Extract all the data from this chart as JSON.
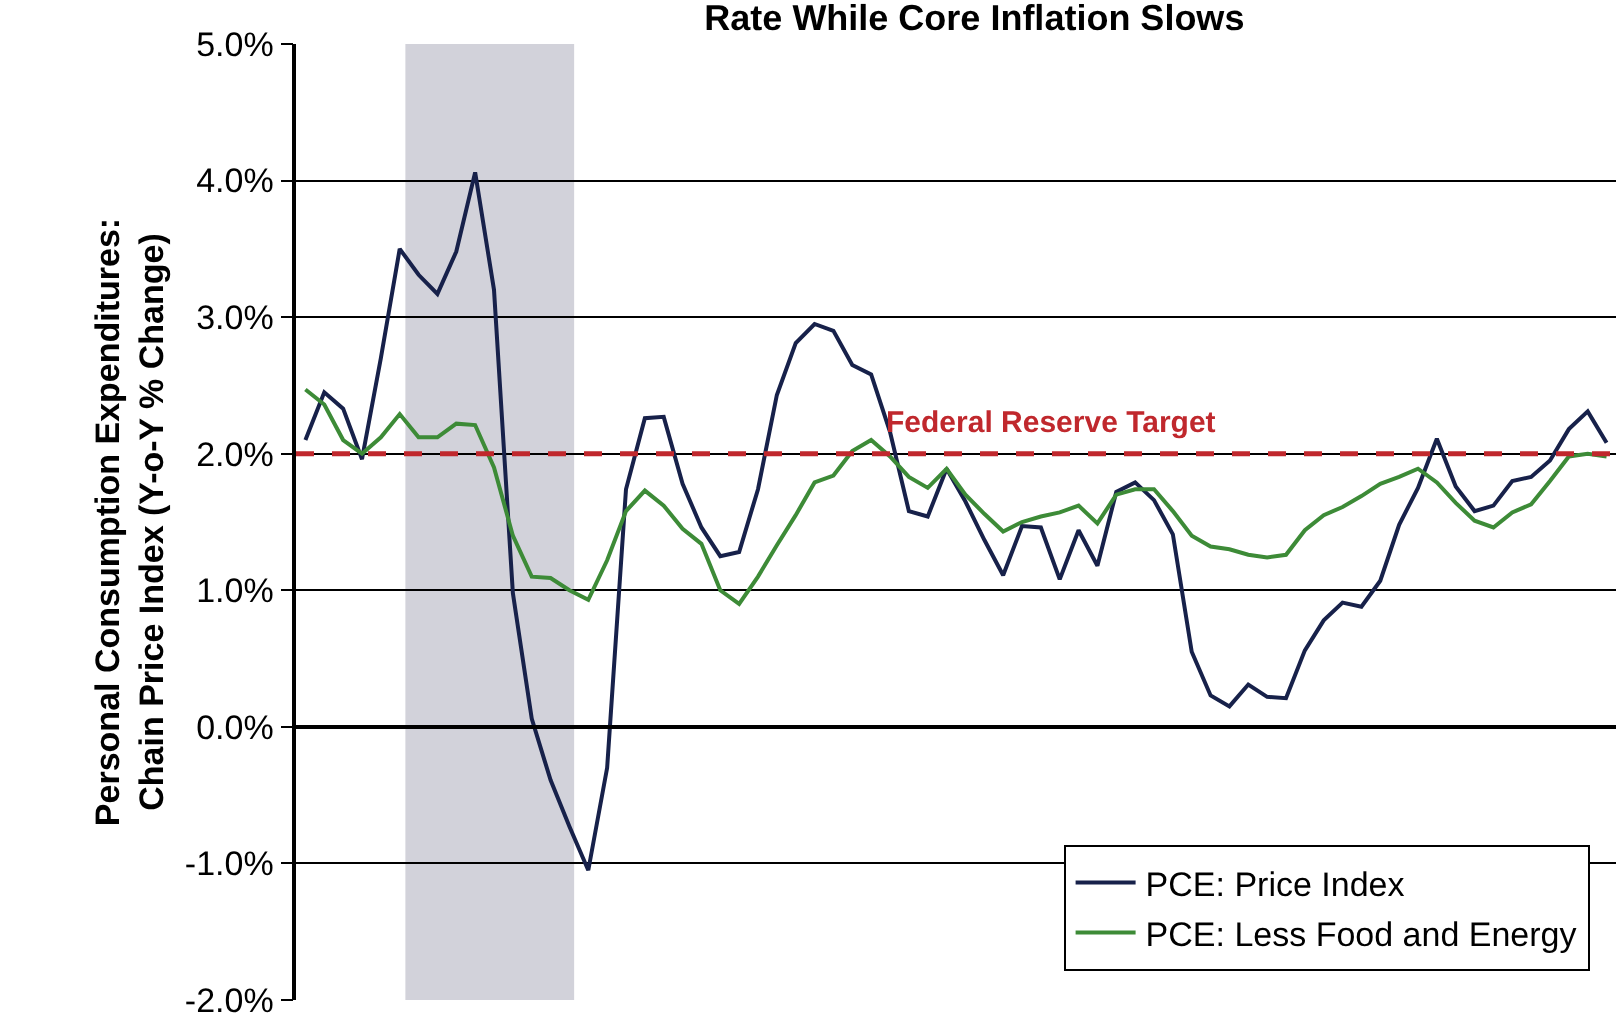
{
  "chart_data": {
    "type": "line",
    "title": "Rate While Core Inflation Slows",
    "ylabel": "Personal Consumption Expenditures:\nChain Price Index (Y-o-Y % Change)",
    "categories": [
      null,
      null,
      null,
      null,
      null,
      null,
      null,
      null,
      null,
      null,
      null,
      null,
      null,
      null,
      null,
      null,
      null,
      null,
      null,
      null,
      null,
      null,
      null,
      null,
      null,
      null,
      null,
      null,
      null,
      null,
      null,
      null,
      null,
      null,
      null,
      null,
      null,
      null,
      null,
      null,
      null,
      null,
      null,
      null,
      null,
      null,
      null,
      null,
      null,
      null,
      null,
      null,
      null,
      null,
      null,
      null,
      null,
      null,
      null,
      null,
      null,
      null,
      null,
      null,
      null,
      null,
      null,
      null,
      null,
      null
    ],
    "ylim": [
      -2,
      5
    ],
    "yticks": [
      {
        "value": -2,
        "label": "-2.0%"
      },
      {
        "value": -1,
        "label": "-1.0%"
      },
      {
        "value": 0,
        "label": "0.0%"
      },
      {
        "value": 1,
        "label": "1.0%"
      },
      {
        "value": 2,
        "label": "2.0%"
      },
      {
        "value": 3,
        "label": "3.0%"
      },
      {
        "value": 4,
        "label": "4.0%"
      },
      {
        "value": 5,
        "label": "5.0%"
      }
    ],
    "tick_labels": "y",
    "grid": "y",
    "legend": "bottom right",
    "marker": "none",
    "line_style": "solid",
    "ref_lines": [
      {
        "axis": "y",
        "value": 2,
        "label": "Federal Reserve Target",
        "color": "#c0282d",
        "line_style": "dashed"
      }
    ],
    "series": [
      {
        "name": "PCE: Price Index",
        "color": "#17214a",
        "values": [
          2.1,
          2.45,
          2.33,
          1.96,
          2.7,
          3.5,
          3.31,
          3.17,
          3.48,
          4.06,
          3.2,
          0.98,
          0.06,
          -0.39,
          -0.73,
          -1.05,
          -0.3,
          1.74,
          2.26,
          2.27,
          1.78,
          1.46,
          1.25,
          1.28,
          1.74,
          2.43,
          2.81,
          2.95,
          2.9,
          2.65,
          2.58,
          2.16,
          1.58,
          1.54,
          1.89,
          1.65,
          1.37,
          1.11,
          1.47,
          1.46,
          1.08,
          1.44,
          1.18,
          1.72,
          1.79,
          1.66,
          1.41,
          0.55,
          0.23,
          0.15,
          0.31,
          0.22,
          0.21,
          0.56,
          0.78,
          0.91,
          0.88,
          1.07,
          1.48,
          1.75,
          2.11,
          1.76,
          1.58,
          1.62,
          1.8,
          1.83,
          1.95,
          2.18,
          2.31,
          2.08
        ]
      },
      {
        "name": "PCE: Less Food and Energy",
        "color": "#3d8b37",
        "values": [
          2.47,
          2.36,
          2.1,
          2.0,
          2.12,
          2.29,
          2.12,
          2.12,
          2.22,
          2.21,
          1.9,
          1.4,
          1.1,
          1.09,
          1.0,
          0.93,
          1.22,
          1.58,
          1.73,
          1.62,
          1.45,
          1.34,
          1.0,
          0.9,
          1.1,
          1.33,
          1.55,
          1.79,
          1.84,
          2.02,
          2.1,
          1.98,
          1.83,
          1.75,
          1.89,
          1.7,
          1.56,
          1.43,
          1.5,
          1.54,
          1.57,
          1.62,
          1.49,
          1.7,
          1.74,
          1.74,
          1.58,
          1.4,
          1.32,
          1.3,
          1.26,
          1.24,
          1.26,
          1.44,
          1.55,
          1.61,
          1.69,
          1.78,
          1.83,
          1.89,
          1.79,
          1.64,
          1.51,
          1.46,
          1.57,
          1.63,
          1.8,
          1.98,
          2.0,
          1.98
        ]
      }
    ]
  }
}
